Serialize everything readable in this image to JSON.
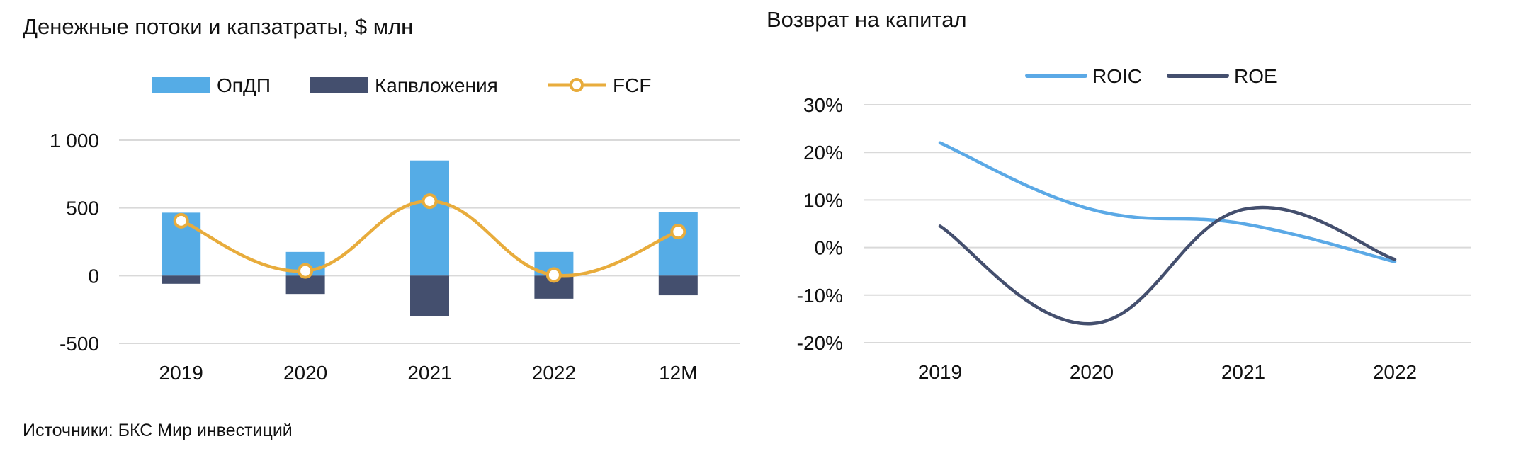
{
  "colors": {
    "opdp": "#55ACE6",
    "capex": "#444F6E",
    "fcf": "#E8AC3C",
    "roic": "#5BA9E6",
    "roe": "#444F6E",
    "grid": "#d9d9d9"
  },
  "source_note": "Источники: БКС Мир инвестиций",
  "chart_data": [
    {
      "type": "bar",
      "title": "Денежные потоки и капзатраты, $ млн",
      "legend_position": "top",
      "grid": true,
      "categories": [
        "2019",
        "2020",
        "2021",
        "2022",
        "12M"
      ],
      "ylim": [
        -500,
        1000
      ],
      "yticks": [
        {
          "value": 1000,
          "label": "1 000"
        },
        {
          "value": 500,
          "label": "500"
        },
        {
          "value": 0,
          "label": "0"
        },
        {
          "value": -500,
          "label": "-500"
        }
      ],
      "series": [
        {
          "name": "ОпДП",
          "type": "bar",
          "color_key": "opdp",
          "values": [
            465,
            175,
            850,
            175,
            470
          ]
        },
        {
          "name": "Капвложения",
          "type": "bar",
          "color_key": "capex",
          "values": [
            -60,
            -135,
            -300,
            -170,
            -145
          ]
        },
        {
          "name": "FCF",
          "type": "line",
          "color_key": "fcf",
          "values": [
            405,
            35,
            550,
            5,
            325
          ]
        }
      ]
    },
    {
      "type": "line",
      "title": "Возврат на капитал",
      "legend_position": "top",
      "grid": true,
      "categories": [
        "2019",
        "2020",
        "2021",
        "2022"
      ],
      "ylim": [
        -20,
        30
      ],
      "yticks": [
        {
          "value": 30,
          "label": "30%"
        },
        {
          "value": 20,
          "label": "20%"
        },
        {
          "value": 10,
          "label": "10%"
        },
        {
          "value": 0,
          "label": "0%"
        },
        {
          "value": -10,
          "label": "-10%"
        },
        {
          "value": -20,
          "label": "-20%"
        }
      ],
      "series": [
        {
          "name": "ROIC",
          "color_key": "roic",
          "values": [
            22,
            8,
            5,
            -3
          ]
        },
        {
          "name": "ROE",
          "color_key": "roe",
          "values": [
            4.5,
            -16,
            8,
            -2.5
          ]
        }
      ]
    }
  ]
}
